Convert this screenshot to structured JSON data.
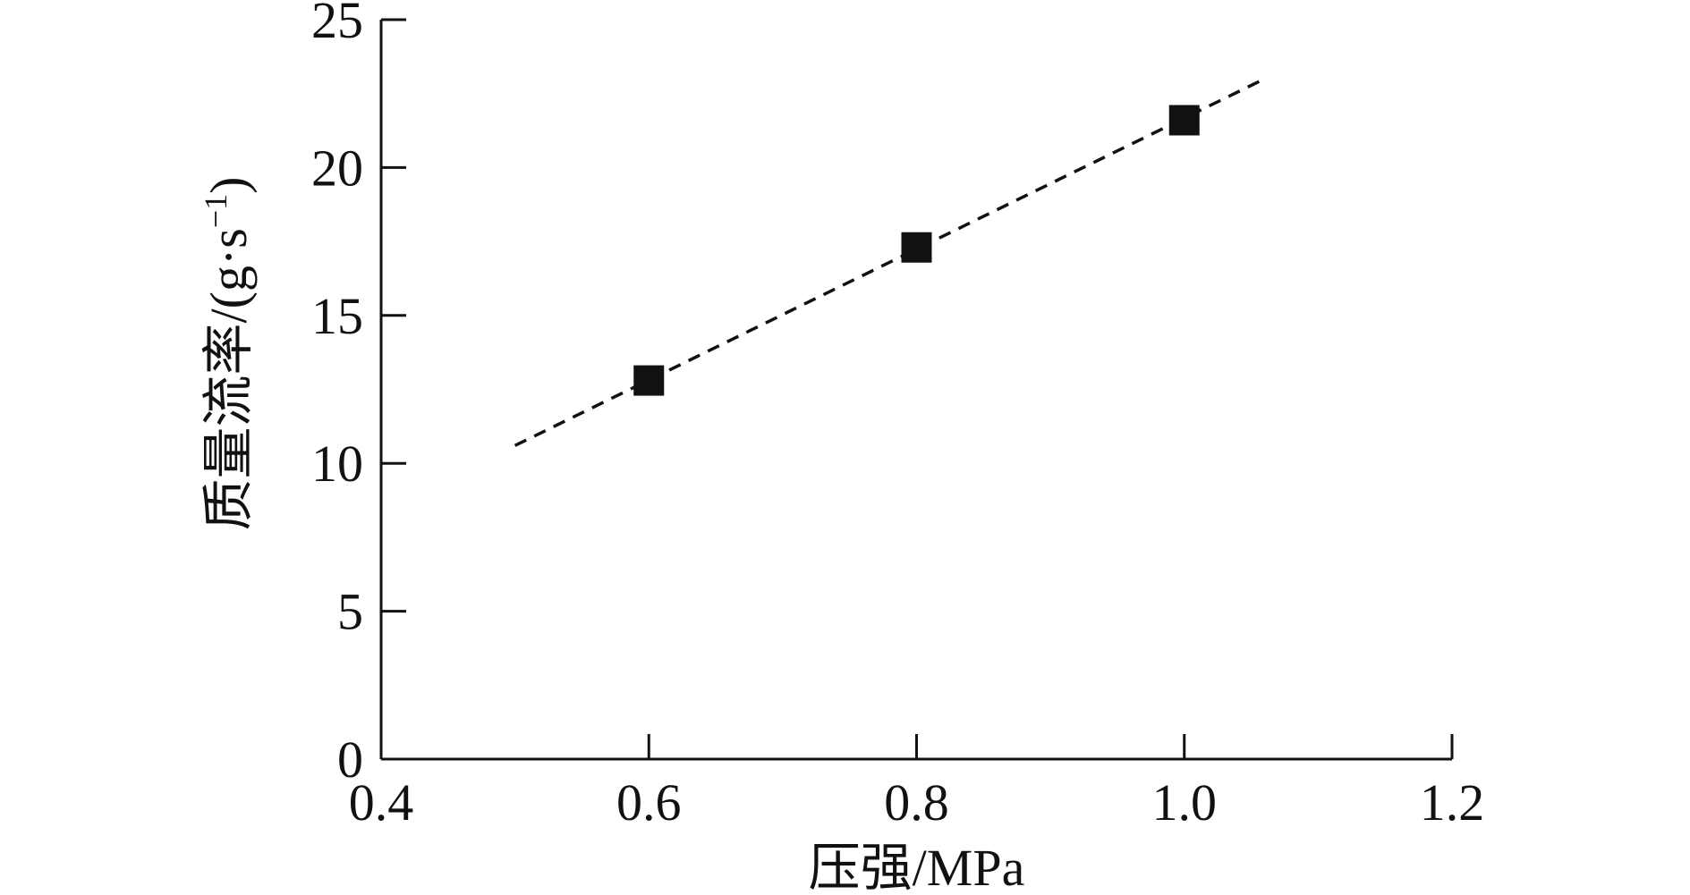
{
  "chart_data": {
    "type": "scatter",
    "title": "",
    "xlabel": "压强/MPa",
    "ylabel": "质量流率/(g·s",
    "ylabel_sup": "−1",
    "ylabel_close": ")",
    "xlim": [
      0.4,
      1.2
    ],
    "ylim": [
      0,
      25
    ],
    "xticks": [
      0.4,
      0.6,
      0.8,
      1.0,
      1.2
    ],
    "xtick_labels": [
      "0.4",
      "0.6",
      "0.8",
      "1.0",
      "1.2"
    ],
    "yticks": [
      0,
      5,
      10,
      15,
      20,
      25
    ],
    "ytick_labels": [
      "0",
      "5",
      "10",
      "15",
      "20",
      "25"
    ],
    "grid": false,
    "legend": "none",
    "series": [
      {
        "marker": "square",
        "color": "#111111",
        "x": [
          0.6,
          0.8,
          1.0
        ],
        "y": [
          12.8,
          17.3,
          21.6
        ]
      }
    ],
    "fit_line": {
      "style": "dashed",
      "color": "#111111",
      "x": [
        0.5,
        1.06
      ],
      "y": [
        10.6,
        23.0
      ]
    }
  }
}
